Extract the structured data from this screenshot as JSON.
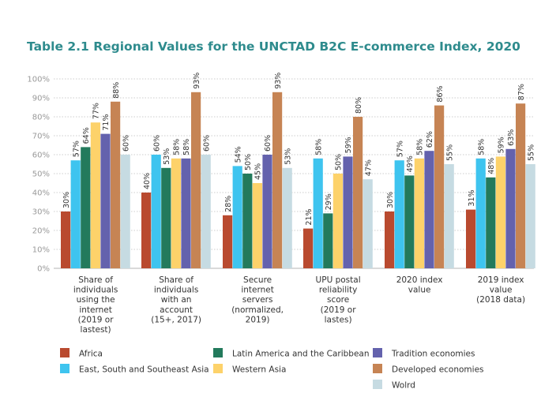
{
  "chart_data": {
    "type": "bar",
    "title": "Table 2.1  Regional Values for the UNCTAD B2C E-commerce Index, 2020",
    "title_color": "#2e8b8d",
    "ylim": [
      0,
      100
    ],
    "y_ticks": [
      "0%",
      "10%",
      "20%",
      "30%",
      "40%",
      "50%",
      "60%",
      "70%",
      "80%",
      "90%",
      "100%"
    ],
    "categories": [
      [
        "Share of",
        "individuals",
        "using the",
        "internet",
        "(2019 or",
        "lastest)"
      ],
      [
        "Share of",
        "individuals",
        "with an",
        "account",
        "(15+, 2017)"
      ],
      [
        "Secure",
        "internet",
        "servers",
        "(normalized,",
        "2019)"
      ],
      [
        "UPU postal",
        "reliability",
        "score",
        "(2019 or",
        "lastes)"
      ],
      [
        "2020 index",
        "value"
      ],
      [
        "2019 index",
        "value",
        "(2018 data)"
      ]
    ],
    "series": [
      {
        "name": "Africa",
        "color": "#b94a2f",
        "values": [
          30,
          40,
          28,
          21,
          30,
          31
        ]
      },
      {
        "name": "East, South and Southeast Asia",
        "color": "#3ec4ef",
        "values": [
          57,
          60,
          54,
          58,
          57,
          58
        ]
      },
      {
        "name": "Latin America and the Caribbean",
        "color": "#237a5c",
        "values": [
          64,
          53,
          50,
          29,
          49,
          48
        ]
      },
      {
        "name": "Western Asia",
        "color": "#fdd26a",
        "values": [
          77,
          58,
          45,
          50,
          58,
          59
        ]
      },
      {
        "name": "Tradition economies",
        "color": "#6462ad",
        "values": [
          71,
          58,
          60,
          59,
          62,
          63
        ]
      },
      {
        "name": "Developed economies",
        "color": "#c68454",
        "values": [
          88,
          93,
          93,
          80,
          86,
          87
        ]
      },
      {
        "name": "Wolrd",
        "color": "#c6dbe2",
        "values": [
          60,
          60,
          53,
          47,
          55,
          55
        ]
      }
    ],
    "data_labels": [
      [
        "30%",
        "57%",
        "64%",
        "77%",
        "71%",
        "88%",
        "60%"
      ],
      [
        "40%",
        "60%",
        "53%",
        "58%",
        "58%",
        "93%",
        "60%"
      ],
      [
        "28%",
        "54%",
        "50%",
        "45%",
        "60%",
        "93%",
        "53%"
      ],
      [
        "21%",
        "58%",
        "29%",
        "50%",
        "59%",
        "80%",
        "47%"
      ],
      [
        "30%",
        "57%",
        "49%",
        "58%",
        "62%",
        "86%",
        "55%"
      ],
      [
        "31%",
        "58%",
        "48%",
        "59%",
        "63%",
        "87%",
        "55%"
      ]
    ],
    "legend": [
      [
        "Africa",
        "Latin America and the Caribbean",
        "Tradition economies"
      ],
      [
        "East, South and Southeast Asia",
        "Western Asia",
        "Developed economies"
      ],
      [
        "",
        "",
        "Wolrd"
      ]
    ]
  }
}
